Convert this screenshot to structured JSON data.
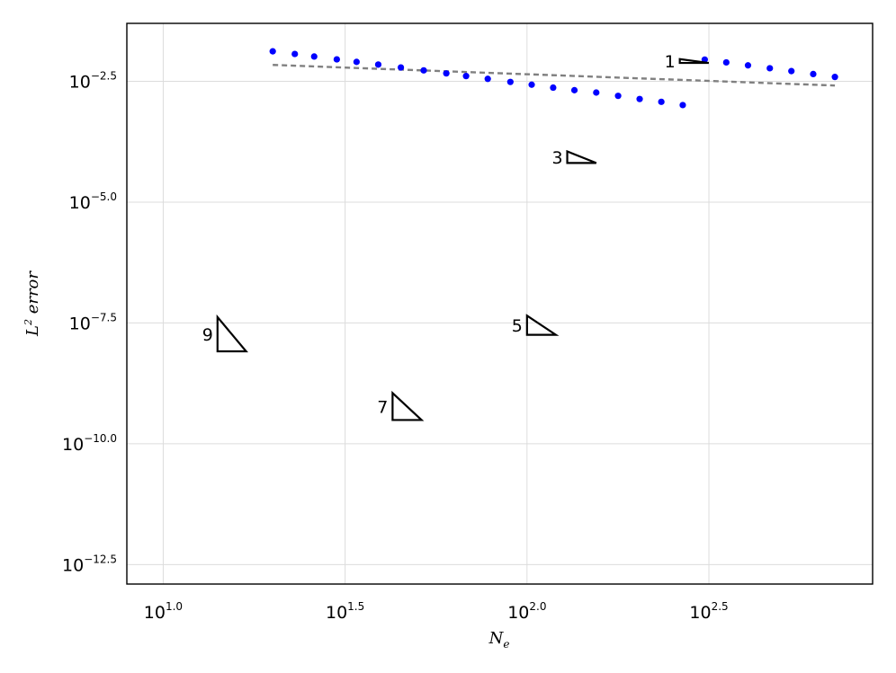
{
  "chart_data": {
    "type": "scatter",
    "title": "",
    "xlabel": {
      "base": "N",
      "subscript": "e"
    },
    "ylabel": {
      "prefix": "L",
      "superscript": "2",
      "suffix": " error"
    },
    "x_scale": "log10",
    "y_scale": "log10",
    "xlim": [
      7.943,
      891.25
    ],
    "ylim": [
      1.25e-13,
      0.05
    ],
    "x_ticks": [
      {
        "value": 10,
        "base": "10",
        "exp": "1.0"
      },
      {
        "value": 31.623,
        "base": "10",
        "exp": "1.5"
      },
      {
        "value": 100,
        "base": "10",
        "exp": "2.0"
      },
      {
        "value": 316.23,
        "base": "10",
        "exp": "2.5"
      }
    ],
    "y_ticks": [
      {
        "value": 0.0031623,
        "base": "10",
        "exp": "−2.5"
      },
      {
        "value": 1e-05,
        "base": "10",
        "exp": "−5.0"
      },
      {
        "value": 3.1623e-08,
        "base": "10",
        "exp": "−7.5"
      },
      {
        "value": 1e-10,
        "base": "10",
        "exp": "−10.0"
      },
      {
        "value": 3.1623e-13,
        "base": "10",
        "exp": "−12.5"
      }
    ],
    "grid": true,
    "marker_color": "#0000ff",
    "fit_line_color": "#808080",
    "series": [
      {
        "order": 1,
        "x": [
          20,
          23,
          26,
          30,
          34,
          39,
          45,
          52,
          60,
          68,
          78,
          90,
          103,
          118,
          135,
          155,
          178,
          204,
          234,
          268,
          308,
          353,
          405,
          465,
          533,
          612,
          702
        ],
        "y": [
          0.0132,
          0.01162,
          0.0103,
          0.00899,
          0.00798,
          0.00702,
          0.00612,
          0.00532,
          0.00461,
          0.00406,
          0.00355,
          0.00307,
          0.00269,
          0.00234,
          0.00207,
          0.00185,
          0.00158,
          0.00136,
          0.00119,
          0.00102,
          0.00891,
          0.00778,
          0.00676,
          0.00589,
          0.00514,
          0.00447,
          0.00389
        ]
      }
    ],
    "slope_triangles": [
      {
        "label": "1",
        "x_start": 263,
        "x_end": 316,
        "y_start": 0.0091
      },
      {
        "label": "3",
        "x_start": 129,
        "x_end": 155,
        "y_start": 0.000112
      },
      {
        "label": "5",
        "x_start": 100,
        "x_end": 120,
        "y_start": 4.47e-08
      },
      {
        "label": "7",
        "x_start": 42.7,
        "x_end": 51.3,
        "y_start": 1.12e-09
      },
      {
        "label": "9",
        "x_start": 14.1,
        "x_end": 16.9,
        "y_start": 4.17e-08
      }
    ]
  }
}
